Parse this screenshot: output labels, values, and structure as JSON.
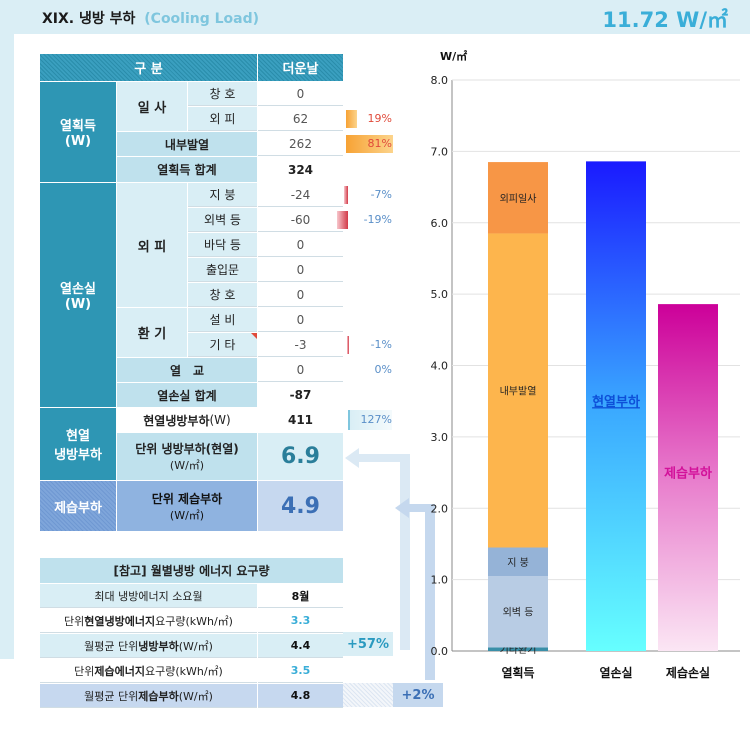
{
  "header": {
    "title": "XIX. 냉방 부하",
    "title_en": "(Cooling Load)",
    "value": "11.72 W/㎡"
  },
  "table": {
    "header": {
      "category": "구 분",
      "col": "더운날"
    },
    "heat_gain": {
      "label": "열획득",
      "unit": "(W)",
      "solar": {
        "label": "일 사",
        "rows": [
          {
            "name": "창 호",
            "value": "0",
            "pct": ""
          },
          {
            "name": "외 피",
            "value": "62",
            "pct": "19%",
            "bar": 0.19
          }
        ]
      },
      "internal": {
        "name": "내부발열",
        "value": "262",
        "pct": "81%",
        "bar": 0.81
      },
      "total": {
        "name": "열획득 합계",
        "value": "324"
      }
    },
    "heat_loss": {
      "label": "열손실",
      "unit": "(W)",
      "envelope": {
        "label": "외 피",
        "rows": [
          {
            "name": "지 붕",
            "value": "-24",
            "pct": "-7%",
            "bar": -0.07
          },
          {
            "name": "외벽 등",
            "value": "-60",
            "pct": "-19%",
            "bar": -0.19
          },
          {
            "name": "바닥 등",
            "value": "0",
            "pct": ""
          },
          {
            "name": "출입문",
            "value": "0",
            "pct": ""
          },
          {
            "name": "창 호",
            "value": "0",
            "pct": ""
          }
        ]
      },
      "ventilation": {
        "label": "환 기",
        "rows": [
          {
            "name": "설 비",
            "value": "0",
            "pct": ""
          },
          {
            "name": "기 타",
            "value": "-3",
            "pct": "-1%",
            "bar": -0.01
          }
        ]
      },
      "bridge": {
        "name": "열　교",
        "value": "0",
        "pct": "0%"
      },
      "total": {
        "name": "열손실 합계",
        "value": "-87"
      }
    },
    "sensible": {
      "label1": "현열",
      "label2": "냉방부하",
      "load_name": "현열냉방부하",
      "load_unit": "(W)",
      "load_value": "411",
      "load_pct": "127%",
      "unit_name": "단위 냉방부하(현열)",
      "unit_unit": "(W/㎡)",
      "unit_value": "6.9"
    },
    "latent": {
      "label": "제습부하",
      "unit_name": "단위 제습부하",
      "unit_unit": "(W/㎡)",
      "unit_value": "4.9"
    }
  },
  "reference": {
    "title": "[참고] 월별냉방 에너지 요구량",
    "rows": [
      {
        "label_pre": "최대 냉방에너지 소요월",
        "label_bold": "",
        "label_post": "",
        "value": "8월"
      },
      {
        "label_pre": "단위 ",
        "label_bold": "현열냉방에너지",
        "label_post": " 요구량(kWh/㎡)",
        "value": "3.3"
      },
      {
        "label_pre": "월평균 단위",
        "label_bold": "냉방부하",
        "label_post": "(W/㎡)",
        "value": "4.4"
      },
      {
        "label_pre": "단위 ",
        "label_bold": "제습에너지",
        "label_post": " 요구량(kWh/㎡)",
        "value": "3.5"
      },
      {
        "label_pre": "월평균 단위",
        "label_bold": "제습부하",
        "label_post": "(W/㎡)",
        "value": "4.8"
      }
    ],
    "badge1": "+57%",
    "badge2": "+2%"
  },
  "chart_data": {
    "type": "bar",
    "stacked": true,
    "ylabel": "W/㎡",
    "ylim": [
      0,
      8
    ],
    "yticks": [
      "0.0",
      "1.0",
      "2.0",
      "3.0",
      "4.0",
      "5.0",
      "6.0",
      "7.0",
      "8.0"
    ],
    "categories": [
      "열획득",
      "열손실",
      "제습손실"
    ],
    "stack_heat_gain": [
      {
        "name": "기타환기",
        "value": 0.05,
        "color": "#3a8fa8"
      },
      {
        "name": "외벽 등",
        "value": 1.0,
        "color": "#b8cce4"
      },
      {
        "name": "지 붕",
        "value": 0.4,
        "color": "#95b3d7"
      },
      {
        "name": "내부발열",
        "value": 4.4,
        "color": "#fdb54d"
      },
      {
        "name": "외피일사",
        "value": 1.0,
        "color": "#f79646"
      }
    ],
    "bars_other": [
      {
        "name": "현열부하",
        "value": 6.86
      },
      {
        "name": "제습부하",
        "value": 4.86
      }
    ]
  }
}
